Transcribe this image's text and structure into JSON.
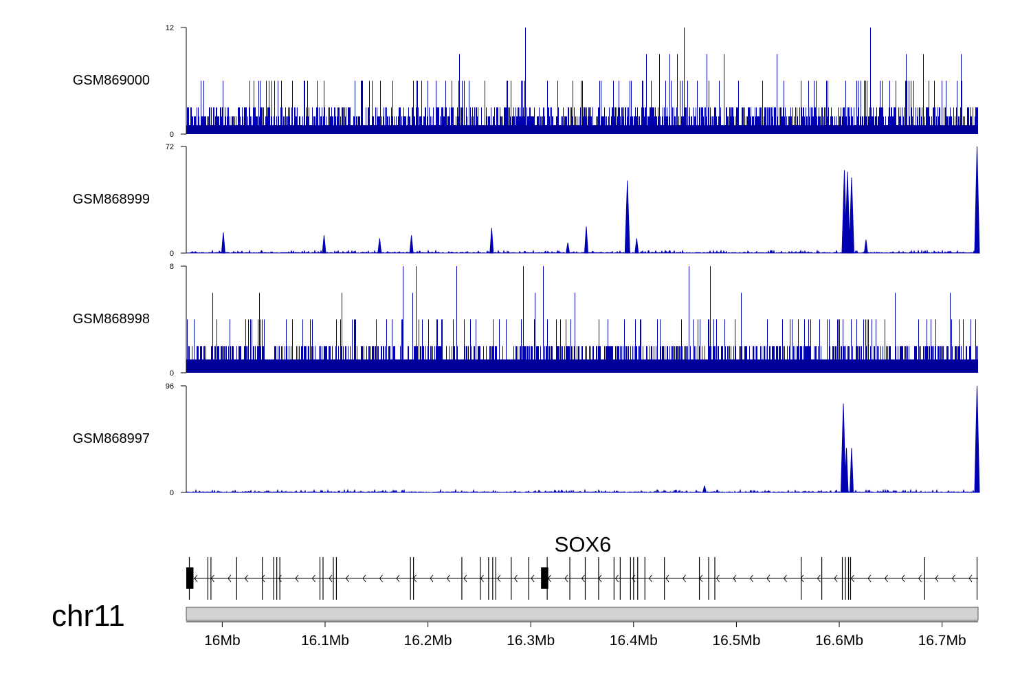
{
  "chart_data": {
    "type": "area",
    "chromosome": "chr11",
    "gene": "SOX6",
    "x_unit": "Mb",
    "x_range": [
      15.965,
      16.735
    ],
    "x_ticks": [
      {
        "value": 16.0,
        "label": "16Mb"
      },
      {
        "value": 16.1,
        "label": "16.1Mb"
      },
      {
        "value": 16.2,
        "label": "16.2Mb"
      },
      {
        "value": 16.3,
        "label": "16.3Mb"
      },
      {
        "value": 16.4,
        "label": "16.4Mb"
      },
      {
        "value": 16.5,
        "label": "16.5Mb"
      },
      {
        "value": 16.6,
        "label": "16.6Mb"
      },
      {
        "value": 16.7,
        "label": "16.7Mb"
      }
    ],
    "tracks": [
      {
        "name": "GSM869000",
        "ymin_label": "0",
        "ymax_label": "12",
        "ylim": [
          0,
          12
        ],
        "pattern": "dense",
        "base_levels": [
          1,
          2,
          3
        ],
        "tall_levels": [
          6,
          9,
          12
        ],
        "peaks": []
      },
      {
        "name": "GSM868999",
        "ymin_label": "0",
        "ymax_label": "72",
        "ylim": [
          0,
          72
        ],
        "pattern": "sparse",
        "peaks": [
          {
            "x": 16.001,
            "y": 14
          },
          {
            "x": 16.099,
            "y": 12
          },
          {
            "x": 16.153,
            "y": 10
          },
          {
            "x": 16.184,
            "y": 12
          },
          {
            "x": 16.262,
            "y": 17
          },
          {
            "x": 16.336,
            "y": 7
          },
          {
            "x": 16.354,
            "y": 18
          },
          {
            "x": 16.394,
            "y": 49
          },
          {
            "x": 16.403,
            "y": 10
          },
          {
            "x": 16.605,
            "y": 56
          },
          {
            "x": 16.608,
            "y": 55
          },
          {
            "x": 16.612,
            "y": 51
          },
          {
            "x": 16.626,
            "y": 9
          },
          {
            "x": 16.734,
            "y": 72
          }
        ]
      },
      {
        "name": "GSM868998",
        "ymin_label": "0",
        "ymax_label": "8",
        "ylim": [
          0,
          8
        ],
        "pattern": "dense",
        "base_levels": [
          1,
          2
        ],
        "tall_levels": [
          4,
          6,
          8
        ],
        "peaks": []
      },
      {
        "name": "GSM868997",
        "ymin_label": "0",
        "ymax_label": "96",
        "ylim": [
          0,
          96
        ],
        "pattern": "sparse",
        "peaks": [
          {
            "x": 16.469,
            "y": 6
          },
          {
            "x": 16.604,
            "y": 80
          },
          {
            "x": 16.607,
            "y": 40
          },
          {
            "x": 16.612,
            "y": 40
          },
          {
            "x": 16.734,
            "y": 96
          }
        ]
      }
    ],
    "gene_model": {
      "name": "SOX6",
      "strand": "-",
      "exons": [
        15.968,
        15.986,
        15.989,
        16.014,
        16.039,
        16.05,
        16.053,
        16.056,
        16.095,
        16.098,
        16.108,
        16.111,
        16.183,
        16.186,
        16.233,
        16.251,
        16.259,
        16.263,
        16.266,
        16.281,
        16.298,
        16.316,
        16.338,
        16.353,
        16.366,
        16.381,
        16.387,
        16.397,
        16.4,
        16.404,
        16.411,
        16.43,
        16.464,
        16.473,
        16.479,
        16.563,
        16.583,
        16.603,
        16.606,
        16.609,
        16.611,
        16.683,
        16.734
      ],
      "utr_blocks": [
        {
          "start": 15.965,
          "end": 15.972
        },
        {
          "start": 16.31,
          "end": 16.317
        }
      ]
    },
    "colors": {
      "signal": "#0000b3",
      "signal_dark": "#000080",
      "ideogram": "#d3d3d3",
      "axis": "#000000"
    }
  }
}
